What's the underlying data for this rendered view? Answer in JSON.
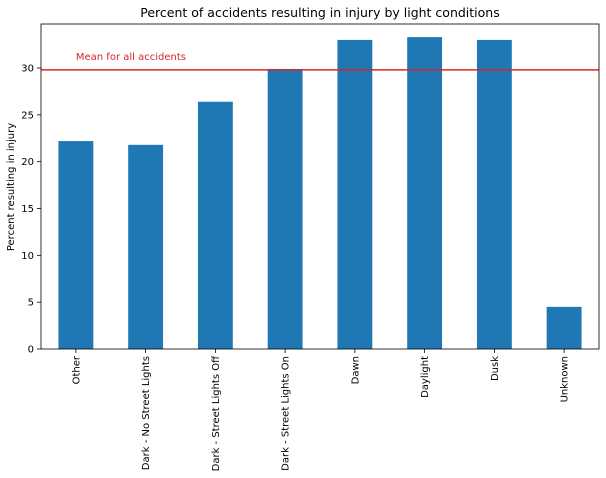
{
  "chart_data": {
    "type": "bar",
    "title": "Percent of accidents resulting in injury by light conditions",
    "xlabel": "",
    "ylabel": "Percent resulting in injury",
    "categories": [
      "Other",
      "Dark - No Street Lights",
      "Dark - Street Lights Off",
      "Dark - Street Lights On",
      "Dawn",
      "Daylight",
      "Dusk",
      "Unknown"
    ],
    "values": [
      22.2,
      21.8,
      26.4,
      29.9,
      33.0,
      33.3,
      33.0,
      4.5
    ],
    "ylim": [
      0,
      34.7
    ],
    "yticks": [
      0,
      5,
      10,
      15,
      20,
      25,
      30
    ],
    "grid": false,
    "bar_color": "#1f77b4",
    "reference_line": {
      "value": 29.8,
      "label": "Mean for all accidents",
      "color": "#d62728"
    }
  }
}
